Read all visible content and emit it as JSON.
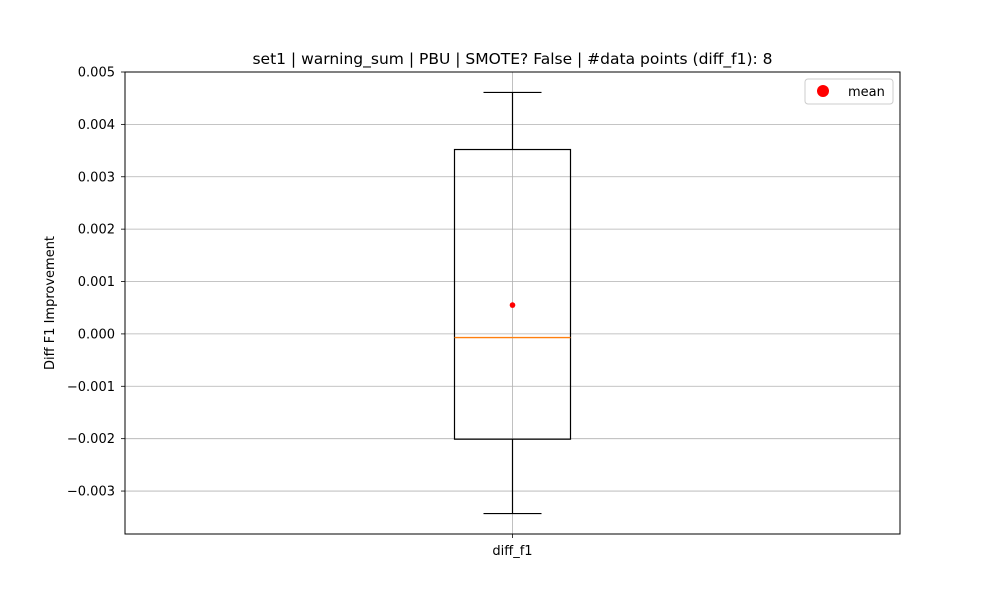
{
  "chart_data": {
    "type": "box",
    "title": "set1 | warning_sum | PBU | SMOTE? False | #data points (diff_f1): 8",
    "xlabel": "",
    "ylabel": "Diff F1 Improvement",
    "categories": [
      "diff_f1"
    ],
    "ylim": [
      -0.00382,
      0.005
    ],
    "y_ticks": [
      "−0.003",
      "−0.002",
      "−0.001",
      "0.000",
      "0.001",
      "0.002",
      "0.003",
      "0.004",
      "0.005"
    ],
    "y_tick_values": [
      -0.003,
      -0.002,
      -0.001,
      0.0,
      0.001,
      0.002,
      0.003,
      0.004,
      0.005
    ],
    "grid": true,
    "legend_position": "top-right",
    "boxes": [
      {
        "category": "diff_f1",
        "whisker_low": -0.00343,
        "q1": -0.00201,
        "median": -7e-05,
        "q3": 0.00352,
        "whisker_high": 0.00461,
        "mean": 0.00055
      }
    ],
    "legend": [
      {
        "label": "mean",
        "marker": "circle",
        "color": "#ff0000"
      }
    ],
    "colors": {
      "box": "#000000",
      "median": "#ff7f0e",
      "mean": "#ff0000",
      "grid": "#b0b0b0"
    },
    "data_points": 8
  }
}
